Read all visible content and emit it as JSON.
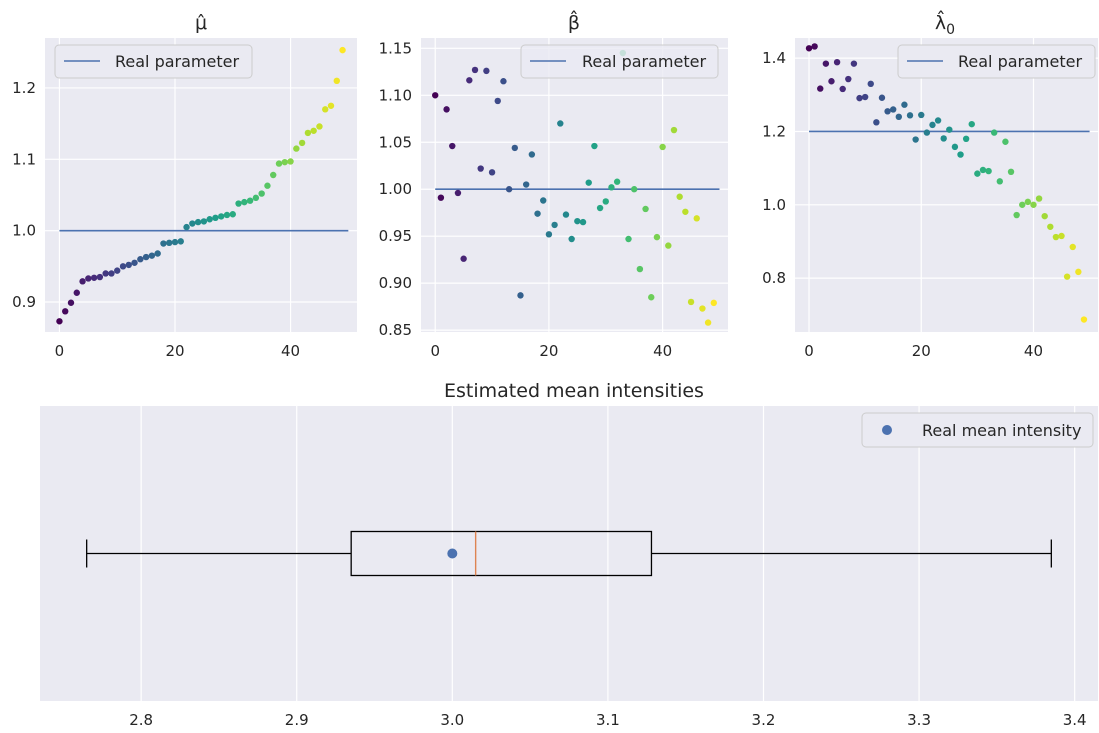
{
  "chart_data": [
    {
      "type": "scatter",
      "title": "μ̂",
      "x": [
        0,
        1,
        2,
        3,
        4,
        5,
        6,
        7,
        8,
        9,
        10,
        11,
        12,
        13,
        14,
        15,
        16,
        17,
        18,
        19,
        20,
        21,
        22,
        23,
        24,
        25,
        26,
        27,
        28,
        29,
        30,
        31,
        32,
        33,
        34,
        35,
        36,
        37,
        38,
        39,
        40,
        41,
        42,
        43,
        44,
        45,
        46,
        47,
        48,
        49
      ],
      "y": [
        0.873,
        0.887,
        0.899,
        0.913,
        0.929,
        0.933,
        0.934,
        0.935,
        0.94,
        0.94,
        0.944,
        0.95,
        0.952,
        0.955,
        0.96,
        0.963,
        0.965,
        0.968,
        0.982,
        0.983,
        0.984,
        0.985,
        1.005,
        1.01,
        1.012,
        1.013,
        1.016,
        1.018,
        1.02,
        1.022,
        1.023,
        1.038,
        1.04,
        1.042,
        1.046,
        1.052,
        1.063,
        1.078,
        1.094,
        1.096,
        1.097,
        1.115,
        1.123,
        1.137,
        1.14,
        1.146,
        1.17,
        1.175,
        1.21,
        1.253
      ],
      "reference_line": 1.0,
      "legend": [
        "Real parameter"
      ],
      "legend_loc": "upper-left",
      "xlim": [
        -2.5,
        51.5
      ],
      "ylim": [
        0.858,
        1.27
      ],
      "xticks": [
        0,
        20,
        40
      ],
      "yticks": [
        0.9,
        1.0,
        1.1,
        1.2
      ],
      "xtick_labels": [
        "0",
        "20",
        "40"
      ],
      "ytick_labels": [
        "0.9",
        "1.0",
        "1.1",
        "1.2"
      ],
      "colormap": "viridis",
      "grid": true
    },
    {
      "type": "scatter",
      "title": "β̂",
      "x": [
        0,
        1,
        2,
        3,
        4,
        5,
        6,
        7,
        8,
        9,
        10,
        11,
        12,
        13,
        14,
        15,
        16,
        17,
        18,
        19,
        20,
        21,
        22,
        23,
        24,
        25,
        26,
        27,
        28,
        29,
        30,
        31,
        32,
        33,
        34,
        35,
        36,
        37,
        38,
        39,
        40,
        41,
        42,
        43,
        44,
        45,
        46,
        47,
        48,
        49
      ],
      "y": [
        1.1,
        0.991,
        1.085,
        1.046,
        0.996,
        0.926,
        1.116,
        1.127,
        1.022,
        1.126,
        1.018,
        1.094,
        1.115,
        1.0,
        1.044,
        0.887,
        1.005,
        1.037,
        0.974,
        0.988,
        0.952,
        0.962,
        1.07,
        0.973,
        0.947,
        0.966,
        0.965,
        1.007,
        1.046,
        0.98,
        0.987,
        1.002,
        1.008,
        1.145,
        0.947,
        1.0,
        0.915,
        0.979,
        0.885,
        0.949,
        1.045,
        0.94,
        1.063,
        0.992,
        0.976,
        0.88,
        0.969,
        0.873,
        0.858,
        0.879
      ],
      "reference_line": 1.0,
      "legend": [
        "Real parameter"
      ],
      "legend_loc": "upper-right",
      "xlim": [
        -2.5,
        51.5
      ],
      "ylim": [
        0.848,
        1.161
      ],
      "xticks": [
        0,
        20,
        40
      ],
      "yticks": [
        0.85,
        0.9,
        0.95,
        1.0,
        1.05,
        1.1,
        1.15
      ],
      "xtick_labels": [
        "0",
        "20",
        "40"
      ],
      "ytick_labels": [
        "0.85",
        "0.90",
        "0.95",
        "1.00",
        "1.05",
        "1.10",
        "1.15"
      ],
      "colormap": "viridis",
      "grid": true
    },
    {
      "type": "scatter",
      "title": "λ̂",
      "title_subscript": "0",
      "x": [
        0,
        1,
        2,
        3,
        4,
        5,
        6,
        7,
        8,
        9,
        10,
        11,
        12,
        13,
        14,
        15,
        16,
        17,
        18,
        19,
        20,
        21,
        22,
        23,
        24,
        25,
        26,
        27,
        28,
        29,
        30,
        31,
        32,
        33,
        34,
        35,
        36,
        37,
        38,
        39,
        40,
        41,
        42,
        43,
        44,
        45,
        46,
        47,
        48,
        49
      ],
      "y": [
        1.427,
        1.432,
        1.317,
        1.385,
        1.337,
        1.389,
        1.316,
        1.343,
        1.385,
        1.291,
        1.294,
        1.33,
        1.225,
        1.292,
        1.255,
        1.26,
        1.24,
        1.273,
        1.244,
        1.178,
        1.245,
        1.197,
        1.218,
        1.23,
        1.181,
        1.205,
        1.158,
        1.137,
        1.18,
        1.22,
        1.085,
        1.095,
        1.092,
        1.197,
        1.064,
        1.172,
        1.09,
        0.972,
        1.0,
        1.008,
        1.0,
        1.017,
        0.969,
        0.94,
        0.912,
        0.915,
        0.804,
        0.885,
        0.817,
        0.687
      ],
      "reference_line": 1.2,
      "legend": [
        "Real parameter"
      ],
      "legend_loc": "upper-right",
      "xlim": [
        -2.5,
        51.5
      ],
      "ylim": [
        0.653,
        1.455
      ],
      "xticks": [
        0,
        20,
        40
      ],
      "yticks": [
        0.8,
        1.0,
        1.2,
        1.4
      ],
      "xtick_labels": [
        "0",
        "20",
        "40"
      ],
      "ytick_labels": [
        "0.8",
        "1.0",
        "1.2",
        "1.4"
      ],
      "colormap": "viridis",
      "grid": true
    },
    {
      "type": "box",
      "title": "Estimated mean intensities",
      "orientation": "horizontal",
      "whisker_low": 2.765,
      "q1": 2.935,
      "median": 3.015,
      "q3": 3.128,
      "whisker_high": 3.385,
      "real_mean": 3.0,
      "legend": [
        "Real mean intensity"
      ],
      "legend_loc": "upper-right",
      "xlim": [
        2.735,
        3.415
      ],
      "xticks": [
        2.8,
        2.9,
        3.0,
        3.1,
        3.2,
        3.3,
        3.4
      ],
      "xtick_labels": [
        "2.8",
        "2.9",
        "3.0",
        "3.1",
        "3.2",
        "3.3",
        "3.4"
      ],
      "colors": {
        "box": "#000000",
        "median": "#dd8452",
        "real_mean": "#4c72b0"
      },
      "grid": true
    }
  ],
  "colors": {
    "background": "#eaeaf2",
    "grid": "#ffffff",
    "reference_line": "#4c72b0",
    "legend_border": "#cccccc",
    "text": "#262626"
  }
}
